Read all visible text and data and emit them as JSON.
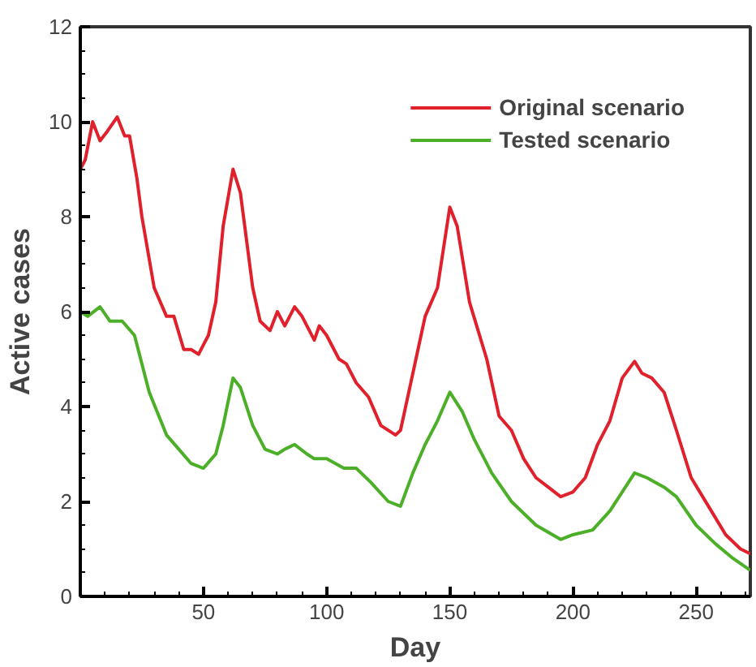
{
  "chart_data": {
    "type": "line",
    "xlabel": "Day",
    "ylabel": "Active cases",
    "xlim": [
      0,
      272
    ],
    "ylim": [
      0,
      12
    ],
    "xticks": [
      50,
      100,
      150,
      200,
      250
    ],
    "yticks": [
      0,
      2,
      4,
      6,
      8,
      10,
      12
    ],
    "grid": false,
    "legend": "top right",
    "marker": "none",
    "line_style": "solid",
    "series": [
      {
        "name": "Original scenario",
        "color": "#e0202a",
        "x": [
          0,
          2,
          5,
          8,
          11,
          15,
          18,
          20,
          23,
          25,
          30,
          35,
          38,
          42,
          45,
          48,
          52,
          55,
          58,
          62,
          65,
          70,
          73,
          77,
          80,
          83,
          87,
          90,
          95,
          97,
          100,
          105,
          108,
          112,
          117,
          122,
          128,
          130,
          135,
          140,
          145,
          150,
          153,
          158,
          165,
          170,
          175,
          180,
          185,
          190,
          195,
          200,
          205,
          210,
          215,
          220,
          225,
          228,
          232,
          237,
          242,
          248,
          255,
          262,
          268,
          272
        ],
        "values": [
          9.0,
          9.2,
          10.0,
          9.6,
          9.8,
          10.1,
          9.7,
          9.7,
          8.8,
          8.0,
          6.5,
          5.9,
          5.9,
          5.2,
          5.2,
          5.1,
          5.5,
          6.2,
          7.8,
          9.0,
          8.5,
          6.5,
          5.8,
          5.6,
          6.0,
          5.7,
          6.1,
          5.9,
          5.4,
          5.7,
          5.5,
          5.0,
          4.9,
          4.5,
          4.2,
          3.6,
          3.4,
          3.5,
          4.7,
          5.9,
          6.5,
          8.2,
          7.8,
          6.2,
          5.0,
          3.8,
          3.5,
          2.9,
          2.5,
          2.3,
          2.1,
          2.2,
          2.5,
          3.2,
          3.7,
          4.6,
          4.95,
          4.7,
          4.6,
          4.3,
          3.5,
          2.5,
          1.9,
          1.3,
          1.0,
          0.9
        ]
      },
      {
        "name": "Tested scenario",
        "color": "#4caf28",
        "x": [
          0,
          3,
          8,
          12,
          17,
          22,
          28,
          35,
          40,
          45,
          50,
          55,
          58,
          62,
          65,
          70,
          75,
          80,
          83,
          87,
          92,
          95,
          100,
          107,
          112,
          118,
          125,
          130,
          135,
          140,
          145,
          150,
          155,
          160,
          167,
          175,
          185,
          195,
          200,
          208,
          215,
          220,
          225,
          230,
          237,
          242,
          250,
          258,
          265,
          272
        ],
        "values": [
          6.0,
          5.9,
          6.1,
          5.8,
          5.8,
          5.5,
          4.3,
          3.4,
          3.1,
          2.8,
          2.7,
          3.0,
          3.6,
          4.6,
          4.4,
          3.6,
          3.1,
          3.0,
          3.1,
          3.2,
          3.0,
          2.9,
          2.9,
          2.7,
          2.7,
          2.4,
          2.0,
          1.9,
          2.6,
          3.2,
          3.7,
          4.3,
          3.9,
          3.3,
          2.6,
          2.0,
          1.5,
          1.2,
          1.3,
          1.4,
          1.8,
          2.2,
          2.6,
          2.5,
          2.3,
          2.1,
          1.5,
          1.1,
          0.8,
          0.55
        ]
      }
    ]
  }
}
